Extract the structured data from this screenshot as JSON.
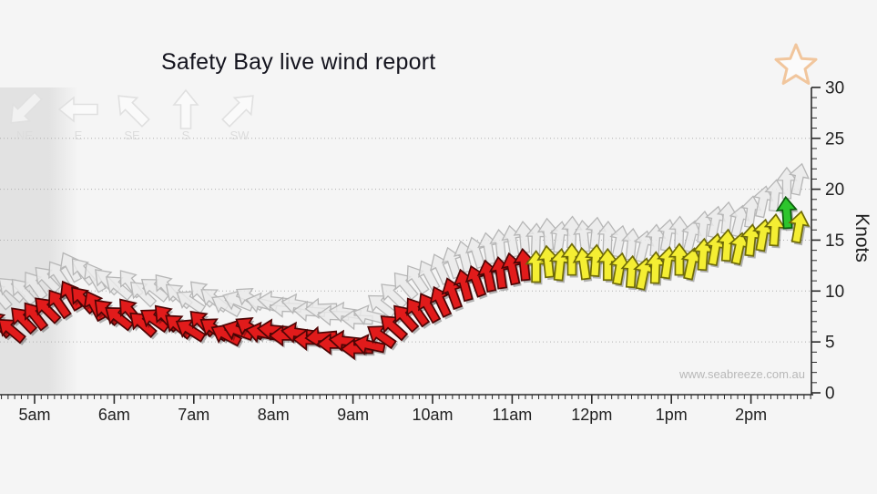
{
  "title": "Safety Bay live wind report",
  "watermark": "www.seabreeze.com.au",
  "y_axis": {
    "label": "Knots",
    "min": 0,
    "max": 30,
    "major_step": 5,
    "minor_step": 1,
    "tick_labels": [
      "0",
      "5",
      "10",
      "15",
      "20",
      "25",
      "30"
    ]
  },
  "x_axis": {
    "start_hour": 5,
    "end_hour": 14,
    "minor_step_minutes": 5,
    "tick_labels": [
      "5am",
      "6am",
      "7am",
      "8am",
      "9am",
      "10am",
      "11am",
      "12pm",
      "1pm",
      "2pm"
    ]
  },
  "legend": {
    "items": [
      {
        "label": "NE",
        "arrow_points_deg": 225
      },
      {
        "label": "E",
        "arrow_points_deg": 270
      },
      {
        "label": "SE",
        "arrow_points_deg": 315
      },
      {
        "label": "S",
        "arrow_points_deg": 0
      },
      {
        "label": "SW",
        "arrow_points_deg": 45
      }
    ]
  },
  "colors": {
    "background": "#f5f5f5",
    "axis": "#2a2a2a",
    "grid": "#b0b0b0",
    "tick_text": "#222222",
    "red_fill": "#e11b1b",
    "red_stroke": "#4d0505",
    "yellow_fill": "#f4ee33",
    "yellow_stroke": "#6e6a08",
    "green_fill": "#2dc52d",
    "green_stroke": "#0b5c0b",
    "gust_fill": "#eaeaea",
    "gust_stroke": "#b6b6b6",
    "legend_stroke": "#e0e0e0",
    "legend_text": "#dcdcdc",
    "night_shade": "rgba(165,165,165,0.24)",
    "star_stroke": "#f1c69d",
    "shadow": "rgba(0,0,0,0.28)"
  },
  "chart_data": {
    "type": "wind-arrows",
    "title": "Safety Bay live wind report",
    "ylabel": "Knots",
    "ylim": [
      0,
      30
    ],
    "gridlines_knots": [
      5,
      10,
      15,
      20,
      25
    ],
    "night_shade_until_hour": 5.55,
    "color_meaning": {
      "red": "light wind",
      "yellow": "moderate wind",
      "green": "fresh wind",
      "grey": "gusts"
    },
    "series": [
      {
        "name": "gusts",
        "style": "grey",
        "points": [
          [
            4.55,
            9.6,
            -40
          ],
          [
            4.7,
            10.2,
            -48
          ],
          [
            4.85,
            10.0,
            -42
          ],
          [
            5.0,
            10.6,
            -36
          ],
          [
            5.15,
            11.2,
            -44
          ],
          [
            5.3,
            11.6,
            -34
          ],
          [
            5.45,
            12.4,
            -28
          ],
          [
            5.6,
            12.0,
            -40
          ],
          [
            5.75,
            11.4,
            -30
          ],
          [
            5.9,
            11.0,
            -44
          ],
          [
            6.05,
            10.4,
            -50
          ],
          [
            6.2,
            10.8,
            -38
          ],
          [
            6.35,
            9.8,
            -46
          ],
          [
            6.5,
            10.2,
            -52
          ],
          [
            6.65,
            10.4,
            -40
          ],
          [
            6.8,
            9.6,
            -48
          ],
          [
            6.95,
            9.0,
            -56
          ],
          [
            7.1,
            9.8,
            -44
          ],
          [
            7.25,
            9.2,
            -52
          ],
          [
            7.4,
            8.6,
            -60
          ],
          [
            7.55,
            9.0,
            -68
          ],
          [
            7.7,
            9.3,
            -56
          ],
          [
            7.85,
            8.8,
            -76
          ],
          [
            8.0,
            9.0,
            -84
          ],
          [
            8.15,
            8.4,
            -88
          ],
          [
            8.3,
            8.7,
            -80
          ],
          [
            8.45,
            8.0,
            -86
          ],
          [
            8.6,
            8.3,
            -92
          ],
          [
            8.75,
            7.6,
            -88
          ],
          [
            8.9,
            7.9,
            -82
          ],
          [
            9.05,
            7.2,
            -88
          ],
          [
            9.2,
            7.6,
            -76
          ],
          [
            9.35,
            8.6,
            -52
          ],
          [
            9.5,
            9.6,
            -46
          ],
          [
            9.65,
            10.6,
            -40
          ],
          [
            9.8,
            11.2,
            -34
          ],
          [
            9.95,
            11.6,
            -28
          ],
          [
            10.1,
            12.2,
            -24
          ],
          [
            10.25,
            12.8,
            -18
          ],
          [
            10.4,
            13.4,
            -14
          ],
          [
            10.55,
            13.8,
            -18
          ],
          [
            10.7,
            14.2,
            -10
          ],
          [
            10.85,
            14.5,
            -6
          ],
          [
            11.0,
            14.9,
            -10
          ],
          [
            11.15,
            15.3,
            -5
          ],
          [
            11.3,
            15.1,
            2
          ],
          [
            11.45,
            15.6,
            -4
          ],
          [
            11.6,
            15.3,
            8
          ],
          [
            11.75,
            15.8,
            2
          ],
          [
            11.9,
            15.4,
            -6
          ],
          [
            12.05,
            15.7,
            6
          ],
          [
            12.2,
            15.3,
            2
          ],
          [
            12.35,
            14.9,
            12
          ],
          [
            12.5,
            14.6,
            6
          ],
          [
            12.65,
            14.4,
            14
          ],
          [
            12.8,
            15.0,
            4
          ],
          [
            12.95,
            15.5,
            10
          ],
          [
            13.1,
            15.8,
            2
          ],
          [
            13.25,
            15.4,
            14
          ],
          [
            13.4,
            16.3,
            6
          ],
          [
            13.55,
            16.8,
            12
          ],
          [
            13.7,
            17.2,
            6
          ],
          [
            13.85,
            16.9,
            14
          ],
          [
            14.0,
            17.8,
            8
          ],
          [
            14.15,
            18.8,
            12
          ],
          [
            14.3,
            19.4,
            6
          ],
          [
            14.45,
            20.6,
            0
          ],
          [
            14.6,
            21.0,
            12
          ]
        ]
      },
      {
        "name": "wind-average",
        "style": "colored",
        "points": [
          [
            4.55,
            6.8,
            -42,
            "red"
          ],
          [
            4.7,
            6.2,
            -50,
            "red"
          ],
          [
            4.85,
            7.2,
            -44,
            "red"
          ],
          [
            5.0,
            7.6,
            -38,
            "red"
          ],
          [
            5.15,
            8.2,
            -45,
            "red"
          ],
          [
            5.3,
            8.8,
            -35,
            "red"
          ],
          [
            5.45,
            9.6,
            -30,
            "red"
          ],
          [
            5.6,
            9.2,
            -42,
            "red"
          ],
          [
            5.75,
            8.6,
            -28,
            "red"
          ],
          [
            5.9,
            8.0,
            -45,
            "red"
          ],
          [
            6.05,
            7.4,
            -52,
            "red"
          ],
          [
            6.2,
            8.0,
            -40,
            "red"
          ],
          [
            6.35,
            6.8,
            -48,
            "red"
          ],
          [
            6.5,
            7.2,
            -55,
            "red"
          ],
          [
            6.65,
            7.4,
            -42,
            "red"
          ],
          [
            6.8,
            6.6,
            -50,
            "red"
          ],
          [
            6.95,
            6.2,
            -58,
            "red"
          ],
          [
            7.1,
            6.9,
            -45,
            "red"
          ],
          [
            7.25,
            6.3,
            -55,
            "red"
          ],
          [
            7.4,
            5.7,
            -62,
            "red"
          ],
          [
            7.55,
            6.1,
            -70,
            "red"
          ],
          [
            7.7,
            6.4,
            -58,
            "red"
          ],
          [
            7.85,
            5.9,
            -78,
            "red"
          ],
          [
            8.0,
            6.2,
            -85,
            "red"
          ],
          [
            8.15,
            5.6,
            -90,
            "red"
          ],
          [
            8.3,
            5.9,
            -82,
            "red"
          ],
          [
            8.45,
            5.2,
            -88,
            "red"
          ],
          [
            8.6,
            5.5,
            -95,
            "red"
          ],
          [
            8.75,
            4.8,
            -90,
            "red"
          ],
          [
            8.9,
            5.1,
            -84,
            "red"
          ],
          [
            9.05,
            4.3,
            -90,
            "red"
          ],
          [
            9.2,
            4.7,
            -78,
            "red"
          ],
          [
            9.35,
            5.6,
            -55,
            "red"
          ],
          [
            9.5,
            6.5,
            -48,
            "red"
          ],
          [
            9.65,
            7.4,
            -42,
            "red"
          ],
          [
            9.8,
            8.0,
            -35,
            "red"
          ],
          [
            9.95,
            8.4,
            -30,
            "red"
          ],
          [
            10.1,
            9.0,
            -25,
            "red"
          ],
          [
            10.25,
            9.8,
            -20,
            "red"
          ],
          [
            10.4,
            10.6,
            -15,
            "red"
          ],
          [
            10.55,
            11.0,
            -20,
            "red"
          ],
          [
            10.7,
            11.5,
            -12,
            "red"
          ],
          [
            10.85,
            11.8,
            -8,
            "red"
          ],
          [
            11.0,
            12.2,
            -12,
            "red"
          ],
          [
            11.15,
            12.6,
            -6,
            "red"
          ],
          [
            11.3,
            12.4,
            0,
            "yellow"
          ],
          [
            11.45,
            12.9,
            -6,
            "yellow"
          ],
          [
            11.6,
            12.6,
            6,
            "yellow"
          ],
          [
            11.75,
            13.1,
            0,
            "yellow"
          ],
          [
            11.9,
            12.7,
            -8,
            "yellow"
          ],
          [
            12.05,
            13.0,
            4,
            "yellow"
          ],
          [
            12.2,
            12.6,
            0,
            "yellow"
          ],
          [
            12.35,
            12.2,
            10,
            "yellow"
          ],
          [
            12.5,
            11.9,
            4,
            "yellow"
          ],
          [
            12.65,
            11.7,
            12,
            "yellow"
          ],
          [
            12.8,
            12.3,
            2,
            "yellow"
          ],
          [
            12.95,
            12.8,
            8,
            "yellow"
          ],
          [
            13.1,
            13.1,
            0,
            "yellow"
          ],
          [
            13.25,
            12.7,
            12,
            "yellow"
          ],
          [
            13.4,
            13.6,
            4,
            "yellow"
          ],
          [
            13.55,
            14.1,
            10,
            "yellow"
          ],
          [
            13.7,
            14.5,
            4,
            "yellow"
          ],
          [
            13.85,
            14.2,
            12,
            "yellow"
          ],
          [
            14.0,
            15.0,
            6,
            "yellow"
          ],
          [
            14.15,
            15.5,
            10,
            "yellow"
          ],
          [
            14.3,
            16.0,
            4,
            "yellow"
          ],
          [
            14.45,
            17.7,
            -4,
            "green"
          ],
          [
            14.6,
            16.3,
            10,
            "yellow"
          ]
        ]
      }
    ]
  }
}
